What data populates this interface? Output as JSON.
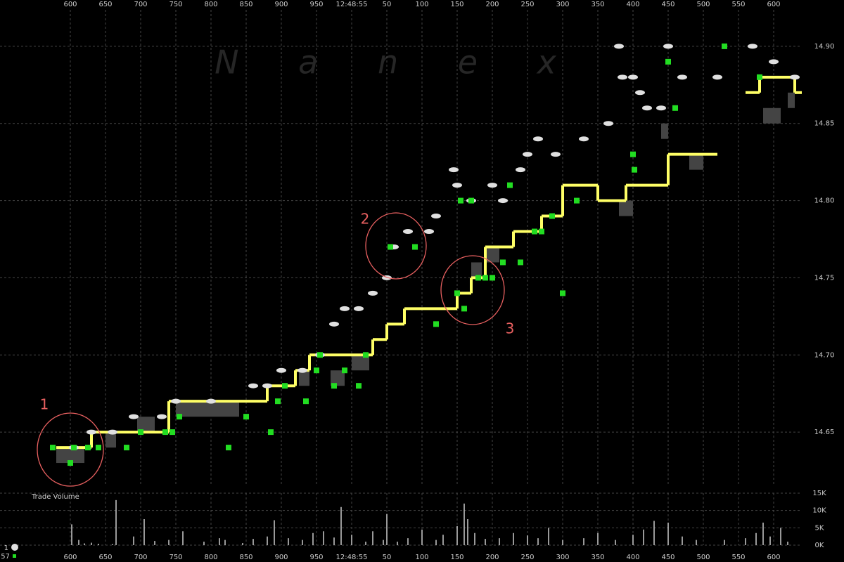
{
  "chart_data": {
    "type": "tick",
    "watermark": "N a n e x",
    "xticks": [
      {
        "value": 600,
        "label": "600"
      },
      {
        "value": 650,
        "label": "650"
      },
      {
        "value": 700,
        "label": "700"
      },
      {
        "value": 750,
        "label": "750"
      },
      {
        "value": 800,
        "label": "800"
      },
      {
        "value": 850,
        "label": "850"
      },
      {
        "value": 900,
        "label": "900"
      },
      {
        "value": 950,
        "label": "950"
      },
      {
        "value": 1000,
        "label": "12:48:55"
      },
      {
        "value": 1050,
        "label": "50"
      },
      {
        "value": 1100,
        "label": "100"
      },
      {
        "value": 1150,
        "label": "150"
      },
      {
        "value": 1200,
        "label": "200"
      },
      {
        "value": 1250,
        "label": "250"
      },
      {
        "value": 1300,
        "label": "300"
      },
      {
        "value": 1350,
        "label": "350"
      },
      {
        "value": 1400,
        "label": "400"
      },
      {
        "value": 1450,
        "label": "450"
      },
      {
        "value": 1500,
        "label": "500"
      },
      {
        "value": 1550,
        "label": "550"
      },
      {
        "value": 1600,
        "label": "600"
      }
    ],
    "xlim": [
      500,
      1640
    ],
    "ylim": [
      14.615,
      14.93
    ],
    "yticks": [
      {
        "value": 14.65,
        "label": "14.65"
      },
      {
        "value": 14.7,
        "label": "14.70"
      },
      {
        "value": 14.75,
        "label": "14.75"
      },
      {
        "value": 14.8,
        "label": "14.80"
      },
      {
        "value": 14.85,
        "label": "14.85"
      },
      {
        "value": 14.9,
        "label": "14.90"
      }
    ],
    "grid": true,
    "nbbo": {
      "color": "#ffff66",
      "x": [
        580,
        630,
        740,
        850,
        880,
        920,
        940,
        1020,
        1030,
        1050,
        1075,
        1130,
        1150,
        1170,
        1190,
        1230,
        1270,
        1300,
        1350,
        1390,
        1450,
        1470,
        1520,
        1560,
        1580,
        1610,
        1630
      ],
      "values": [
        14.64,
        14.65,
        14.67,
        14.67,
        14.68,
        14.69,
        14.7,
        14.7,
        14.71,
        14.72,
        14.73,
        14.73,
        14.74,
        14.75,
        14.77,
        14.78,
        14.79,
        14.81,
        14.8,
        14.81,
        14.83,
        14.83,
        null,
        14.87,
        14.88,
        14.88,
        14.87
      ]
    },
    "spread": {
      "color": "#444444",
      "x0": [
        580,
        650,
        695,
        750,
        925,
        970,
        1000,
        1170,
        1190,
        1380,
        1440,
        1480,
        1585,
        1620
      ],
      "x1": [
        620,
        665,
        720,
        840,
        940,
        990,
        1025,
        1185,
        1210,
        1400,
        1450,
        1500,
        1610,
        1630
      ],
      "low": [
        14.63,
        14.64,
        14.65,
        14.66,
        14.68,
        14.68,
        14.69,
        14.75,
        14.76,
        14.79,
        14.84,
        14.82,
        14.85,
        14.86
      ],
      "high": [
        14.64,
        14.65,
        14.66,
        14.67,
        14.69,
        14.69,
        14.7,
        14.76,
        14.77,
        14.8,
        14.85,
        14.83,
        14.86,
        14.87
      ]
    },
    "quotes": {
      "color": "#e0e0e0",
      "x": [
        605,
        630,
        660,
        690,
        730,
        750,
        800,
        860,
        880,
        900,
        930,
        955,
        975,
        990,
        1010,
        1030,
        1050,
        1060,
        1080,
        1110,
        1120,
        1145,
        1150,
        1170,
        1200,
        1215,
        1240,
        1250,
        1265,
        1290,
        1330,
        1365,
        1380,
        1385,
        1400,
        1410,
        1420,
        1440,
        1450,
        1470,
        1520,
        1570,
        1600,
        1630
      ],
      "values": [
        14.64,
        14.65,
        14.65,
        14.66,
        14.66,
        14.67,
        14.67,
        14.68,
        14.68,
        14.69,
        14.69,
        14.7,
        14.72,
        14.73,
        14.73,
        14.74,
        14.75,
        14.77,
        14.78,
        14.78,
        14.79,
        14.82,
        14.81,
        14.8,
        14.81,
        14.8,
        14.82,
        14.83,
        14.84,
        14.83,
        14.84,
        14.85,
        14.9,
        14.88,
        14.88,
        14.87,
        14.86,
        14.86,
        14.9,
        14.88,
        14.88,
        14.9,
        14.89,
        14.88
      ]
    },
    "trades": {
      "color": "#22dd22",
      "x": [
        575,
        600,
        605,
        625,
        640,
        680,
        700,
        735,
        745,
        755,
        825,
        850,
        885,
        895,
        905,
        935,
        950,
        955,
        975,
        990,
        1010,
        1020,
        1055,
        1090,
        1120,
        1150,
        1155,
        1160,
        1170,
        1180,
        1190,
        1200,
        1215,
        1225,
        1240,
        1260,
        1270,
        1285,
        1300,
        1320,
        1400,
        1402,
        1450,
        1460,
        1530,
        1580
      ],
      "values": [
        14.64,
        14.63,
        14.64,
        14.64,
        14.64,
        14.64,
        14.65,
        14.65,
        14.65,
        14.66,
        14.64,
        14.66,
        14.65,
        14.67,
        14.68,
        14.67,
        14.69,
        14.7,
        14.68,
        14.69,
        14.68,
        14.7,
        14.77,
        14.77,
        14.72,
        14.74,
        14.8,
        14.73,
        14.8,
        14.75,
        14.75,
        14.75,
        14.76,
        14.81,
        14.76,
        14.78,
        14.78,
        14.79,
        14.74,
        14.8,
        14.83,
        14.82,
        14.89,
        14.86,
        14.9,
        14.88
      ]
    },
    "volume": {
      "title": "Trade Volume",
      "color": "#cccccc",
      "ylim": [
        0,
        15000
      ],
      "yticks": [
        {
          "value": 15000,
          "label": "15K"
        },
        {
          "value": 10000,
          "label": "10K"
        },
        {
          "value": 5000,
          "label": "5K"
        },
        {
          "value": 0,
          "label": "0K"
        }
      ],
      "x": [
        602,
        612,
        620,
        630,
        640,
        660,
        665,
        690,
        705,
        720,
        740,
        760,
        790,
        812,
        820,
        845,
        860,
        880,
        890,
        910,
        930,
        945,
        960,
        975,
        985,
        1000,
        1020,
        1030,
        1045,
        1050,
        1065,
        1080,
        1100,
        1120,
        1130,
        1150,
        1160,
        1165,
        1175,
        1190,
        1210,
        1230,
        1250,
        1265,
        1280,
        1300,
        1330,
        1350,
        1375,
        1400,
        1415,
        1430,
        1450,
        1470,
        1490,
        1530,
        1560,
        1575,
        1585,
        1595,
        1610,
        1620
      ],
      "values": [
        6000,
        1500,
        500,
        700,
        400,
        300,
        13000,
        2500,
        7500,
        1200,
        1500,
        4000,
        1000,
        2000,
        1500,
        600,
        1800,
        2500,
        7200,
        2000,
        1500,
        3500,
        4000,
        2200,
        11000,
        3000,
        1000,
        4000,
        1500,
        9000,
        1000,
        2000,
        4500,
        1500,
        3000,
        5500,
        12000,
        7500,
        3500,
        1800,
        2000,
        3500,
        2800,
        2000,
        5000,
        1500,
        2000,
        3500,
        1500,
        3000,
        4500,
        7000,
        6500,
        2500,
        1500,
        1500,
        2000,
        3500,
        6500,
        2500,
        5000,
        1000
      ]
    },
    "annotations": [
      "1",
      "2",
      "3"
    ],
    "size_legend": [
      "1",
      "57"
    ]
  }
}
